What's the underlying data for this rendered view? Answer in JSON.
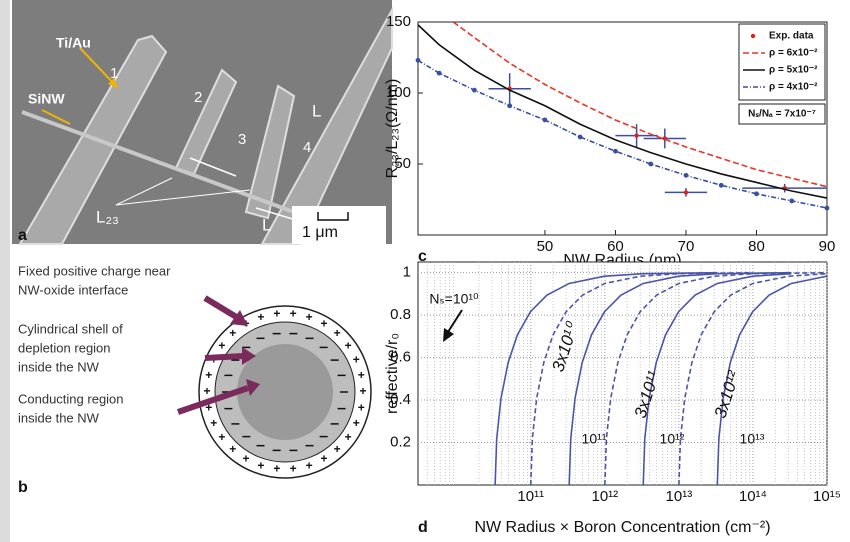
{
  "panel_a": {
    "label": "a",
    "electrode_material": "Ti/Au",
    "nanowire": "SiNW",
    "electrodes": [
      "1",
      "2",
      "3",
      "4"
    ],
    "length_marks": [
      "L",
      "L"
    ],
    "spacing": "L₂₃",
    "scale_bar": "1 μm"
  },
  "panel_b": {
    "label": "b",
    "annotations": [
      [
        "Fixed positive charge near",
        "NW-oxide interface"
      ],
      [
        "Cylindrical shell of",
        "depletion region",
        "inside the NW"
      ],
      [
        "Conducting region",
        "inside the NW"
      ]
    ]
  },
  "chart_data": [
    {
      "type": "line",
      "panel_label": "c",
      "xlabel": "NW Radius (nm)",
      "ylabel": "R₂₃/L₂₃(Ω/nm)",
      "xlim": [
        32,
        90
      ],
      "ylim": [
        0,
        150
      ],
      "xticks": [
        50,
        60,
        70,
        80,
        90
      ],
      "yticks": [
        50,
        100,
        150
      ],
      "grid": false,
      "legend": "upper right",
      "note": "Nₛ/Nₐ = 7x10⁻⁷",
      "series": [
        {
          "name": "Exp. data",
          "style": "points",
          "color": "#e0201c",
          "error_color": "#3a4fa0",
          "x": [
            45,
            63,
            67,
            70,
            84
          ],
          "values": [
            103,
            70,
            68,
            30,
            33
          ],
          "xerr": [
            3,
            3,
            3,
            3,
            6
          ],
          "yerr": [
            11,
            8,
            7,
            3,
            3
          ]
        },
        {
          "name": "ρ = 6x10⁻²",
          "style": "line",
          "color": "#e8352a",
          "dash": "6 3",
          "x": [
            37,
            40,
            45,
            50,
            55,
            60,
            65,
            70,
            75,
            80,
            85,
            90
          ],
          "values": [
            150,
            139,
            121,
            106,
            93,
            81,
            71,
            62,
            54,
            46,
            40,
            34
          ]
        },
        {
          "name": "ρ = 5x10⁻²",
          "style": "line",
          "color": "#111111",
          "x": [
            32,
            35,
            40,
            45,
            50,
            55,
            60,
            65,
            70,
            75,
            80,
            85,
            90
          ],
          "values": [
            148,
            134,
            116,
            102,
            91,
            78,
            67,
            58,
            50,
            43,
            37,
            31,
            26
          ]
        },
        {
          "name": "ρ = 4x10⁻²",
          "style": "line",
          "color": "#3a4fa0",
          "dash": "5 2 1 2",
          "markers": true,
          "x": [
            32,
            35,
            40,
            45,
            50,
            55,
            60,
            65,
            70,
            75,
            80,
            85,
            90
          ],
          "values": [
            123,
            114,
            102,
            91,
            81,
            69,
            59,
            50,
            42,
            35,
            29,
            24,
            19
          ]
        }
      ]
    },
    {
      "type": "line",
      "panel_label": "d",
      "xlabel": "NW Radius × Boron Concentration (cm⁻²)",
      "ylabel": "reffective/r₀",
      "log_x": true,
      "xlim": [
        3000000000.0,
        1000000000000000.0
      ],
      "ylim": [
        0,
        1.05
      ],
      "xticks": [
        {
          "value": 100000000000.0,
          "label": "10¹¹"
        },
        {
          "value": 1000000000000.0,
          "label": "10¹²"
        },
        {
          "value": 10000000000000.0,
          "label": "10¹³"
        },
        {
          "value": 100000000000000.0,
          "label": "10¹⁴"
        },
        {
          "value": 1000000000000000.0,
          "label": "10¹⁵"
        }
      ],
      "yticks": [
        0.2,
        0.4,
        0.6,
        0.8,
        1
      ],
      "grid": true,
      "series": [
        {
          "name": "Nₛ=10¹⁰",
          "style": "line",
          "color": "#4a55a8",
          "x": [
            33000000000.0,
            34650000000.0,
            39600000000.0,
            49500000000.0,
            66000000000.0,
            99000000000.0,
            165000000000.0,
            330000000000.0,
            990000000000.0,
            3300000000000.0,
            33000000000000.0
          ],
          "values": [
            0,
            0.218,
            0.408,
            0.577,
            0.707,
            0.816,
            0.894,
            0.949,
            0.983,
            0.995,
            0.9995
          ]
        },
        {
          "name": "3x10¹⁰",
          "style": "line",
          "color": "#4a55a8",
          "dash": "5 3",
          "x": [
            100000000000.0,
            105000000000.0,
            120000000000.0,
            150000000000.0,
            200000000000.0,
            300000000000.0,
            500000000000.0,
            1000000000000.0,
            3000000000000.0,
            10000000000000.0,
            100000000000000.0
          ],
          "values": [
            0,
            0.218,
            0.408,
            0.577,
            0.707,
            0.816,
            0.894,
            0.949,
            0.983,
            0.995,
            0.9995
          ]
        },
        {
          "name": "10¹¹",
          "style": "line",
          "color": "#4a55a8",
          "x": [
            330000000000.0,
            346500000000.0,
            396000000000.0,
            495000000000.0,
            660000000000.0,
            990000000000.0,
            1650000000000.0,
            3300000000000.0,
            9900000000000.0,
            33000000000000.0,
            330000000000000.0
          ],
          "values": [
            0,
            0.218,
            0.408,
            0.577,
            0.707,
            0.816,
            0.894,
            0.949,
            0.983,
            0.995,
            0.9995
          ]
        },
        {
          "name": "3x10¹¹",
          "style": "line",
          "color": "#4a55a8",
          "dash": "5 3",
          "x": [
            1000000000000.0,
            1050000000000.0,
            1200000000000.0,
            1500000000000.0,
            2000000000000.0,
            3000000000000.0,
            5000000000000.0,
            10000000000000.0,
            30000000000000.0,
            100000000000000.0,
            1000000000000000.0
          ],
          "values": [
            0,
            0.218,
            0.408,
            0.577,
            0.707,
            0.816,
            0.894,
            0.949,
            0.983,
            0.995,
            0.9995
          ]
        },
        {
          "name": "10¹²",
          "style": "line",
          "color": "#4a55a8",
          "x": [
            3300000000000.0,
            3465000000000.0,
            3960000000000.0,
            4950000000000.0,
            6600000000000.0,
            9900000000000.0,
            16500000000000.0,
            33000000000000.0,
            99000000000000.0,
            330000000000000.0
          ],
          "values": [
            0,
            0.218,
            0.408,
            0.577,
            0.707,
            0.816,
            0.894,
            0.949,
            0.983,
            0.995
          ]
        },
        {
          "name": "3x10¹²",
          "style": "line",
          "color": "#4a55a8",
          "dash": "5 3",
          "x": [
            10000000000000.0,
            10500000000000.0,
            12000000000000.0,
            15000000000000.0,
            20000000000000.0,
            30000000000000.0,
            50000000000000.0,
            100000000000000.0,
            300000000000000.0,
            1000000000000000.0
          ],
          "values": [
            0,
            0.218,
            0.408,
            0.577,
            0.707,
            0.816,
            0.894,
            0.949,
            0.983,
            0.995
          ]
        },
        {
          "name": "10¹³",
          "style": "line",
          "color": "#4a55a8",
          "x": [
            33000000000000.0,
            34650000000000.0,
            39600000000000.0,
            49500000000000.0,
            66000000000000.0,
            99000000000000.0,
            165000000000000.0,
            330000000000000.0,
            990000000000000.0
          ],
          "values": [
            0,
            0.218,
            0.408,
            0.577,
            0.707,
            0.816,
            0.894,
            0.949,
            0.983
          ]
        }
      ]
    }
  ]
}
